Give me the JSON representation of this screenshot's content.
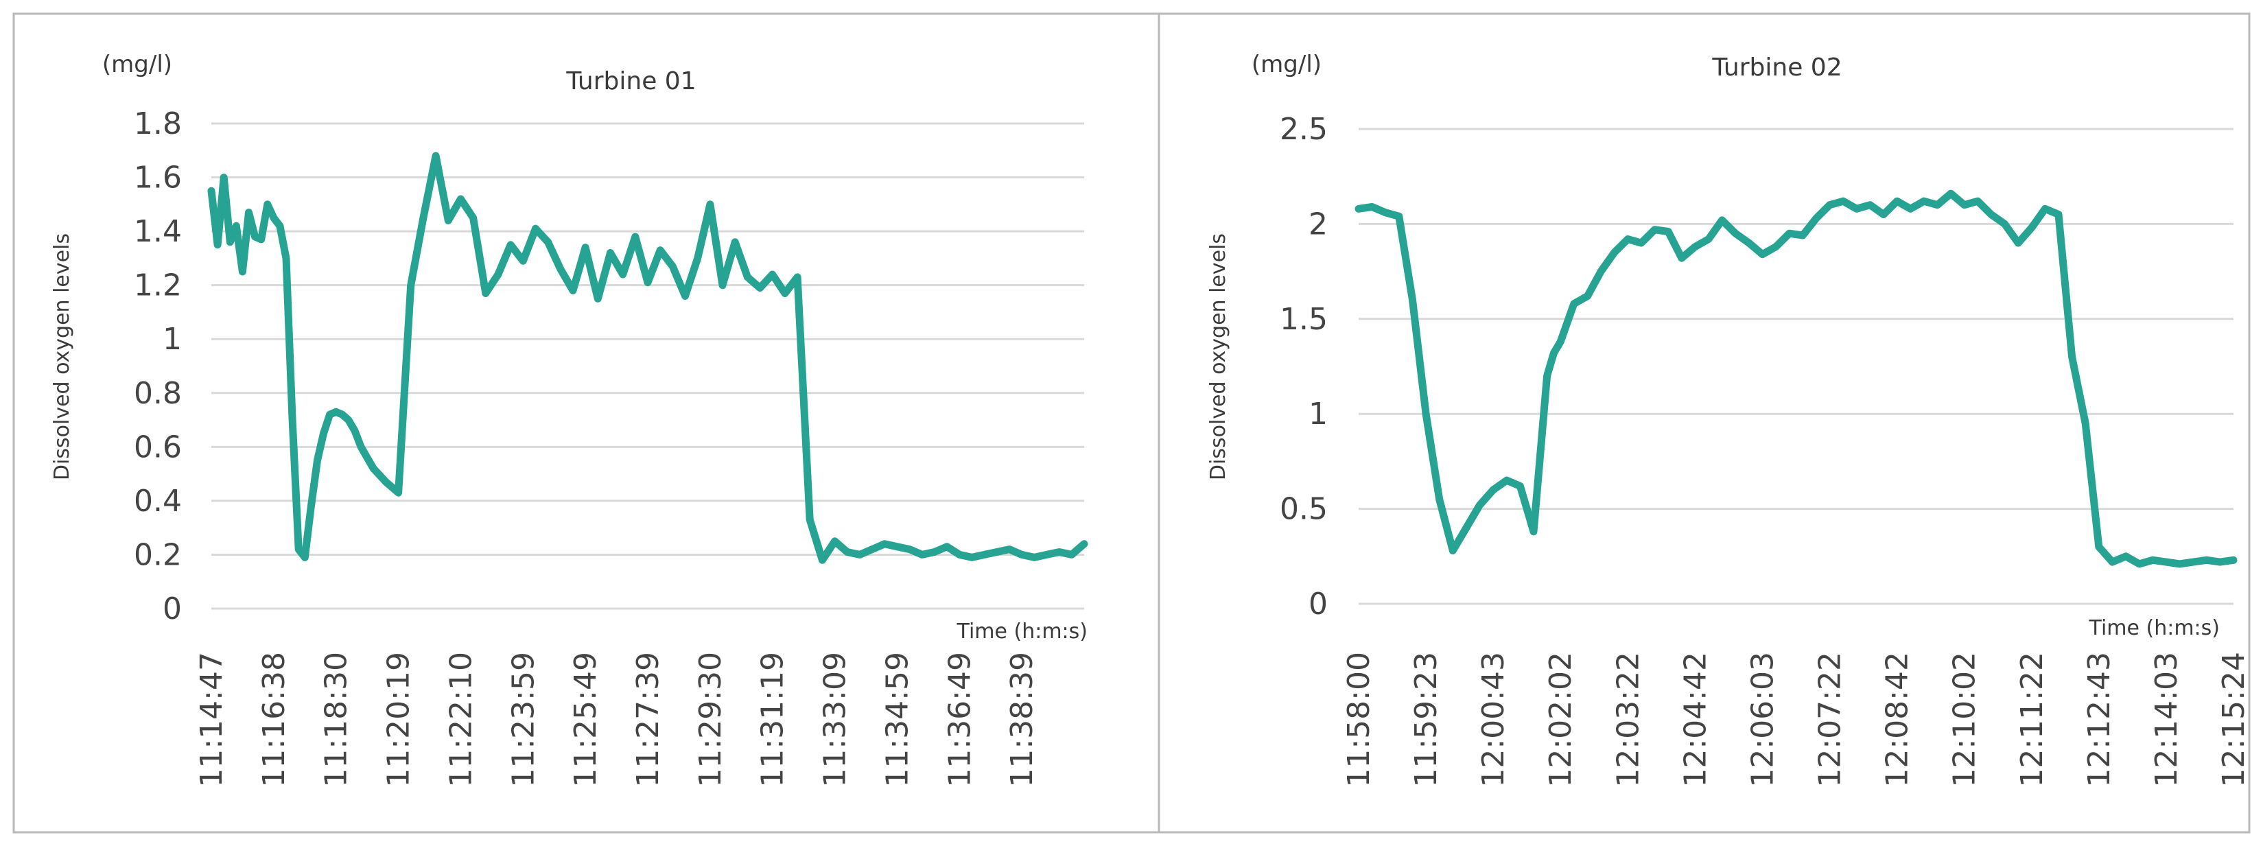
{
  "chart_data": [
    {
      "type": "line",
      "title": "Turbine 01",
      "unit": "(mg/l)",
      "ylabel": "Dissolved oxygen levels",
      "xlabel": "Time  (h:m:s)",
      "ylim": [
        0,
        1.8
      ],
      "yticks": [
        0,
        0.2,
        0.4,
        0.6,
        0.8,
        1,
        1.2,
        1.4,
        1.6,
        1.8
      ],
      "ytick_labels": [
        "0",
        "0.2",
        "0.4",
        "0.6",
        "0.8",
        "1",
        "1.2",
        "1.4",
        "1.6",
        "1.8"
      ],
      "xlim": [
        0,
        140
      ],
      "tick_every": 10,
      "categories": [
        "11:14:47",
        "11:16:38",
        "11:18:30",
        "11:20:19",
        "11:22:10",
        "11:23:59",
        "11:25:49",
        "11:27:39",
        "11:29:30",
        "11:31:19",
        "11:33:09",
        "11:34:59",
        "11:36:49",
        "11:38:39"
      ],
      "series": [
        {
          "name": "Dissolved oxygen levels",
          "x": [
            0,
            1,
            2,
            3,
            4,
            5,
            6,
            7,
            8,
            9,
            10,
            11,
            12,
            13,
            14,
            15,
            16,
            17,
            18,
            19,
            20,
            21,
            22,
            23,
            24,
            25,
            26,
            28,
            30,
            32,
            34,
            36,
            38,
            40,
            42,
            44,
            46,
            48,
            50,
            52,
            54,
            56,
            58,
            60,
            62,
            64,
            66,
            68,
            70,
            72,
            74,
            76,
            78,
            80,
            82,
            84,
            86,
            88,
            90,
            92,
            94,
            96,
            98,
            100,
            102,
            104,
            106,
            108,
            110,
            112,
            114,
            116,
            118,
            120,
            122,
            124,
            126,
            128,
            130,
            132,
            134,
            136,
            138,
            140
          ],
          "values": [
            1.55,
            1.35,
            1.6,
            1.36,
            1.42,
            1.25,
            1.47,
            1.38,
            1.37,
            1.5,
            1.45,
            1.42,
            1.3,
            0.7,
            0.22,
            0.19,
            0.38,
            0.55,
            0.65,
            0.72,
            0.73,
            0.72,
            0.7,
            0.66,
            0.6,
            0.56,
            0.52,
            0.47,
            0.43,
            1.2,
            1.45,
            1.68,
            1.44,
            1.52,
            1.45,
            1.17,
            1.24,
            1.35,
            1.29,
            1.41,
            1.36,
            1.26,
            1.18,
            1.34,
            1.15,
            1.32,
            1.24,
            1.38,
            1.21,
            1.33,
            1.27,
            1.16,
            1.3,
            1.5,
            1.2,
            1.36,
            1.23,
            1.19,
            1.24,
            1.17,
            1.23,
            0.33,
            0.18,
            0.25,
            0.21,
            0.2,
            0.22,
            0.24,
            0.23,
            0.22,
            0.2,
            0.21,
            0.23,
            0.2,
            0.19,
            0.2,
            0.21,
            0.22,
            0.2,
            0.19,
            0.2,
            0.21,
            0.2,
            0.24
          ]
        }
      ]
    },
    {
      "type": "line",
      "title": "Turbine 02",
      "unit": "(mg/l)",
      "ylabel": "Dissolved oxygen levels",
      "xlabel": "Time  (h:m:s)",
      "ylim": [
        0,
        2.5
      ],
      "yticks": [
        0,
        0.5,
        1,
        1.5,
        2,
        2.5
      ],
      "ytick_labels": [
        "0",
        "0.5",
        "1",
        "1.5",
        "2",
        "2.5"
      ],
      "xlim": [
        0,
        130
      ],
      "tick_every": 10,
      "categories": [
        "11:58:00",
        "11:59:23",
        "12:00:43",
        "12:02:02",
        "12:03:22",
        "12:04:42",
        "12:06:03",
        "12:07:22",
        "12:08:42",
        "12:10:02",
        "12:11:22",
        "12:12:43",
        "12:14:03",
        "12:15:24"
      ],
      "series": [
        {
          "name": "Dissolved oxygen levels",
          "x": [
            0,
            2,
            4,
            6,
            8,
            10,
            12,
            14,
            16,
            18,
            20,
            22,
            24,
            26,
            28,
            29,
            30,
            32,
            34,
            36,
            38,
            40,
            42,
            44,
            46,
            48,
            50,
            52,
            54,
            56,
            58,
            60,
            62,
            64,
            66,
            68,
            70,
            72,
            74,
            76,
            78,
            80,
            82,
            84,
            86,
            88,
            90,
            92,
            94,
            96,
            98,
            100,
            102,
            104,
            106,
            108,
            110,
            112,
            114,
            116,
            118,
            120,
            122,
            124,
            126,
            128,
            130
          ],
          "values": [
            2.08,
            2.09,
            2.06,
            2.04,
            1.6,
            1.0,
            0.55,
            0.28,
            0.4,
            0.52,
            0.6,
            0.65,
            0.62,
            0.38,
            1.2,
            1.32,
            1.38,
            1.58,
            1.62,
            1.75,
            1.85,
            1.92,
            1.9,
            1.97,
            1.96,
            1.82,
            1.88,
            1.92,
            2.02,
            1.95,
            1.9,
            1.84,
            1.88,
            1.95,
            1.94,
            2.03,
            2.1,
            2.12,
            2.08,
            2.1,
            2.05,
            2.12,
            2.08,
            2.12,
            2.1,
            2.16,
            2.1,
            2.12,
            2.05,
            2.0,
            1.9,
            1.98,
            2.08,
            2.05,
            1.3,
            0.95,
            0.3,
            0.22,
            0.25,
            0.21,
            0.23,
            0.22,
            0.21,
            0.22,
            0.23,
            0.22,
            0.23
          ]
        }
      ]
    }
  ]
}
